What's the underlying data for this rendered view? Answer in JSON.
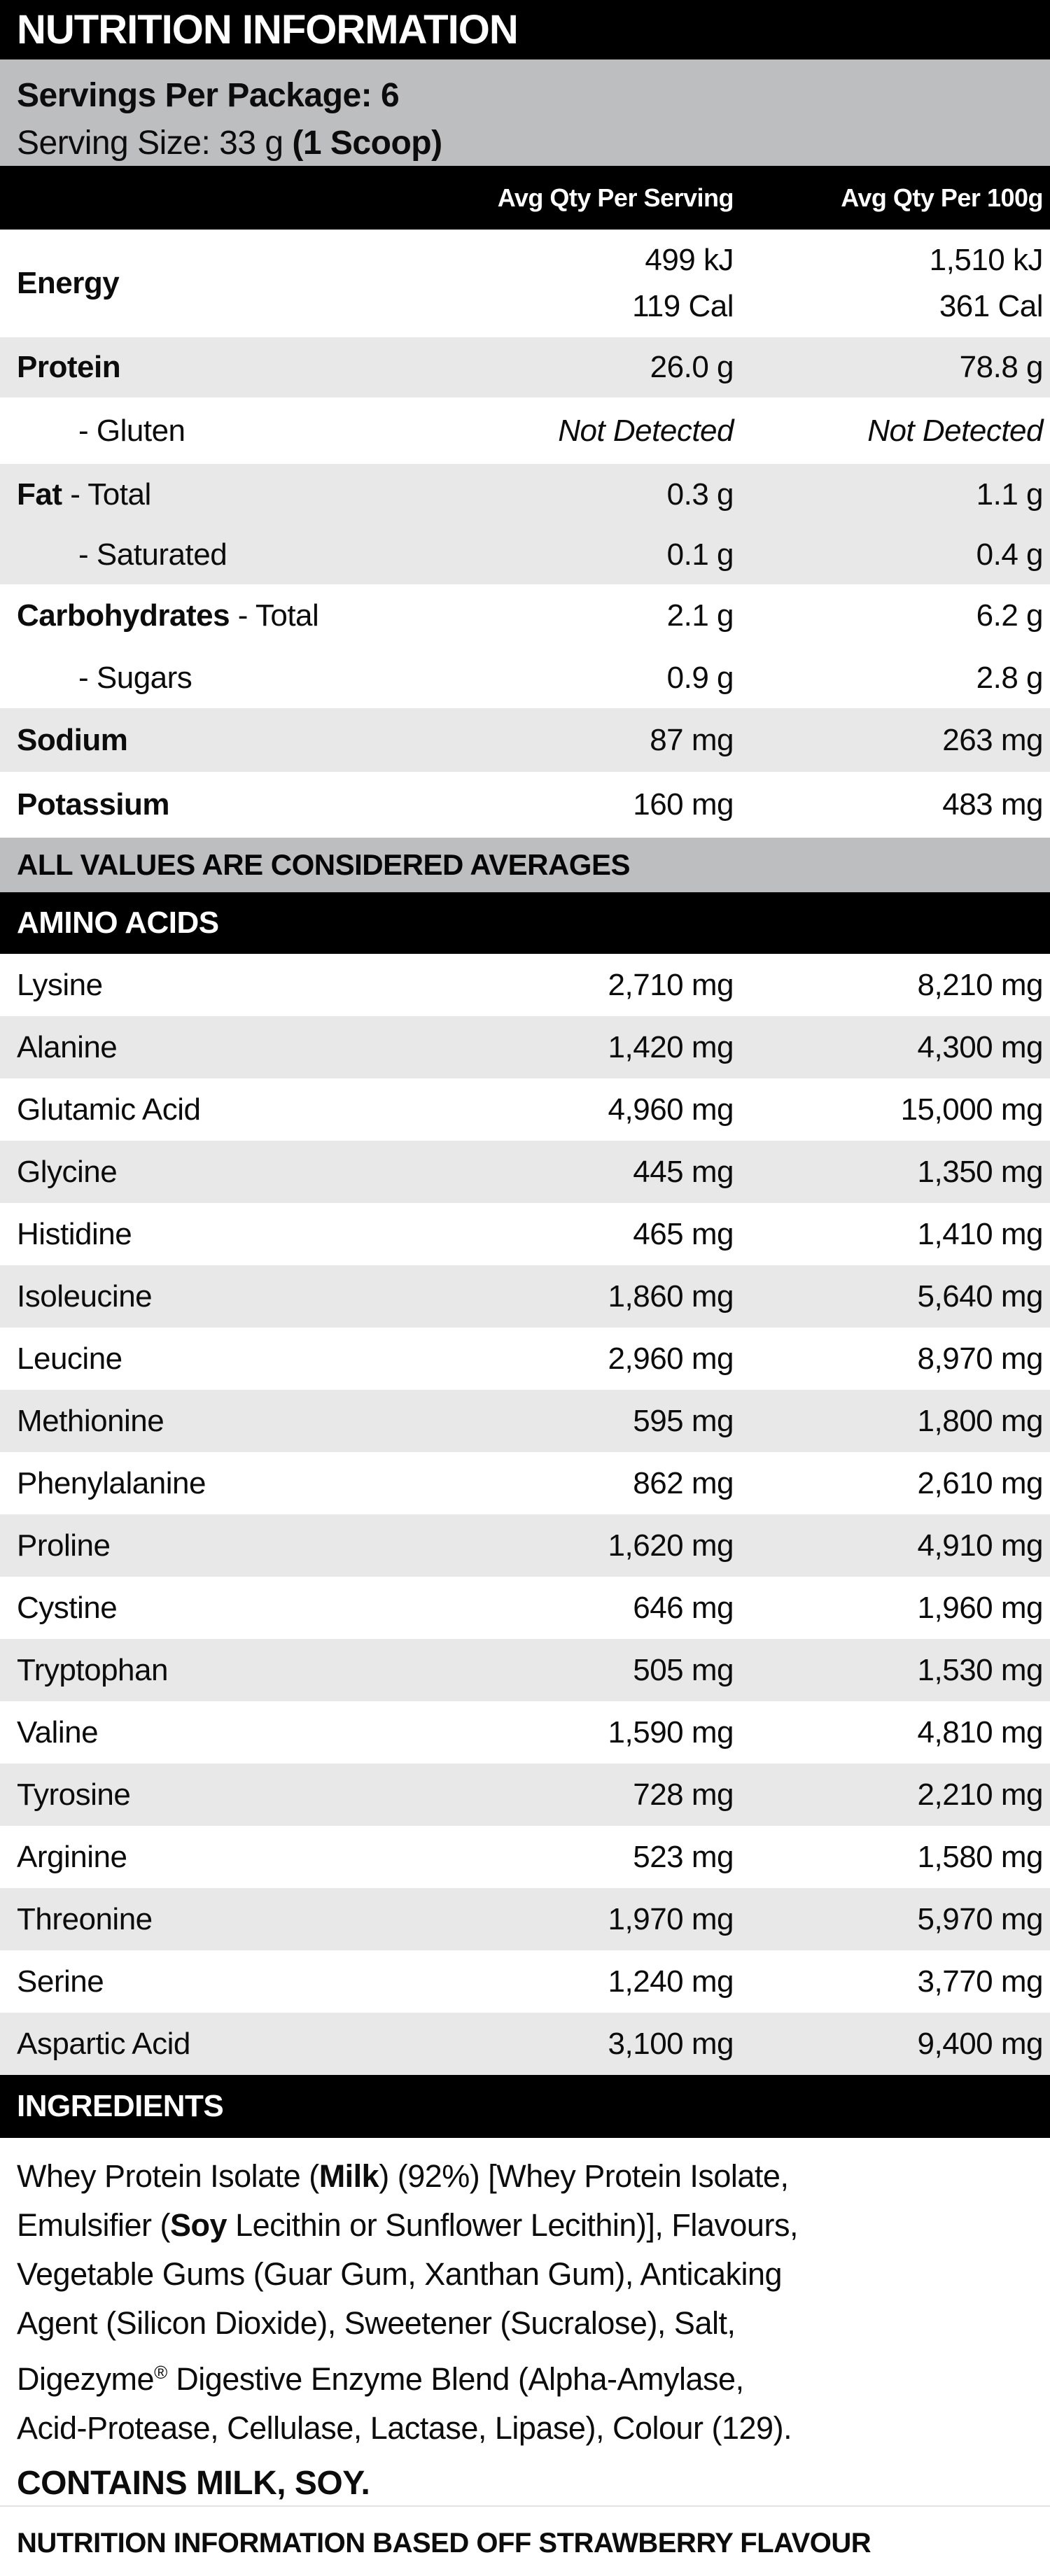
{
  "title": "NUTRITION INFORMATION",
  "serving": {
    "line1": "Servings Per Package: 6",
    "line2_regular": "Serving Size: 33 g ",
    "line2_bold": "(1 Scoop)"
  },
  "columns": {
    "per_serving": "Avg Qty Per Serving",
    "per_100g": "Avg Qty Per 100g"
  },
  "table": {
    "energy": {
      "label": "Energy",
      "per_serving_kj": "499 kJ",
      "per_serving_cal": "119 Cal",
      "per_100g_kj": "1,510 kJ",
      "per_100g_cal": "361 Cal"
    },
    "protein": {
      "label": "Protein",
      "per_serving": "26.0 g",
      "per_100g": "78.8 g"
    },
    "gluten": {
      "label": "- Gluten",
      "per_serving": "Not Detected",
      "per_100g": "Not Detected"
    },
    "fat": {
      "label_bold": "Fat",
      "label_rest": " - Total",
      "per_serving": "0.3 g",
      "per_100g": "1.1 g"
    },
    "saturated": {
      "label": "- Saturated",
      "per_serving": "0.1 g",
      "per_100g": "0.4 g"
    },
    "carbs": {
      "label_bold": "Carbohydrates",
      "label_rest": " - Total",
      "per_serving": "2.1 g",
      "per_100g": "6.2 g"
    },
    "sugars": {
      "label": "- Sugars",
      "per_serving": "0.9 g",
      "per_100g": "2.8 g"
    },
    "sodium": {
      "label": "Sodium",
      "per_serving": "87 mg",
      "per_100g": "263 mg"
    },
    "potassium": {
      "label": "Potassium",
      "per_serving": "160 mg",
      "per_100g": "483 mg"
    }
  },
  "averages_note": "ALL VALUES ARE CONSIDERED AVERAGES",
  "amino_header": "AMINO ACIDS",
  "amino_rows": [
    {
      "label": "Lysine",
      "per_serving": "2,710 mg",
      "per_100g": "8,210 mg"
    },
    {
      "label": "Alanine",
      "per_serving": "1,420 mg",
      "per_100g": "4,300 mg"
    },
    {
      "label": "Glutamic Acid",
      "per_serving": "4,960 mg",
      "per_100g": "15,000 mg"
    },
    {
      "label": "Glycine",
      "per_serving": "445 mg",
      "per_100g": "1,350 mg"
    },
    {
      "label": "Histidine",
      "per_serving": "465 mg",
      "per_100g": "1,410 mg"
    },
    {
      "label": "Isoleucine",
      "per_serving": "1,860 mg",
      "per_100g": "5,640 mg"
    },
    {
      "label": "Leucine",
      "per_serving": "2,960 mg",
      "per_100g": "8,970 mg"
    },
    {
      "label": "Methionine",
      "per_serving": "595 mg",
      "per_100g": "1,800 mg"
    },
    {
      "label": "Phenylalanine",
      "per_serving": "862 mg",
      "per_100g": "2,610 mg"
    },
    {
      "label": "Proline",
      "per_serving": "1,620 mg",
      "per_100g": "4,910 mg"
    },
    {
      "label": "Cystine",
      "per_serving": "646 mg",
      "per_100g": "1,960 mg"
    },
    {
      "label": "Tryptophan",
      "per_serving": "505 mg",
      "per_100g": "1,530 mg"
    },
    {
      "label": "Valine",
      "per_serving": "1,590 mg",
      "per_100g": "4,810 mg"
    },
    {
      "label": "Tyrosine",
      "per_serving": "728 mg",
      "per_100g": "2,210 mg"
    },
    {
      "label": "Arginine",
      "per_serving": "523 mg",
      "per_100g": "1,580 mg"
    },
    {
      "label": "Threonine",
      "per_serving": "1,970 mg",
      "per_100g": "5,970 mg"
    },
    {
      "label": "Serine",
      "per_serving": "1,240 mg",
      "per_100g": "3,770 mg"
    },
    {
      "label": "Aspartic Acid",
      "per_serving": "3,100 mg",
      "per_100g": "9,400 mg"
    }
  ],
  "ingredients_header": "INGREDIENTS",
  "ingredients": {
    "line1_pre": "Whey Protein Isolate (",
    "line1_bold": "Milk",
    "line1_post": ") (92%) [Whey Protein Isolate,",
    "line2_pre": "Emulsifier (",
    "line2_bold": "Soy",
    "line2_post": " Lecithin or Sunflower Lecithin)], Flavours,",
    "line3": "Vegetable Gums (Guar Gum, Xanthan Gum), Anticaking",
    "line4": "Agent (Silicon Dioxide), Sweetener (Sucralose), Salt,",
    "line5_pre": "Digezyme",
    "line5_sup": "®",
    "line5_post": " Digestive Enzyme Blend (Alpha-Amylase,",
    "line6": "Acid-Protease, Cellulase, Lactase, Lipase), Colour (129)."
  },
  "contains": "CONTAINS MILK, SOY.",
  "footnote": "NUTRITION INFORMATION BASED OFF STRAWBERRY FLAVOUR"
}
